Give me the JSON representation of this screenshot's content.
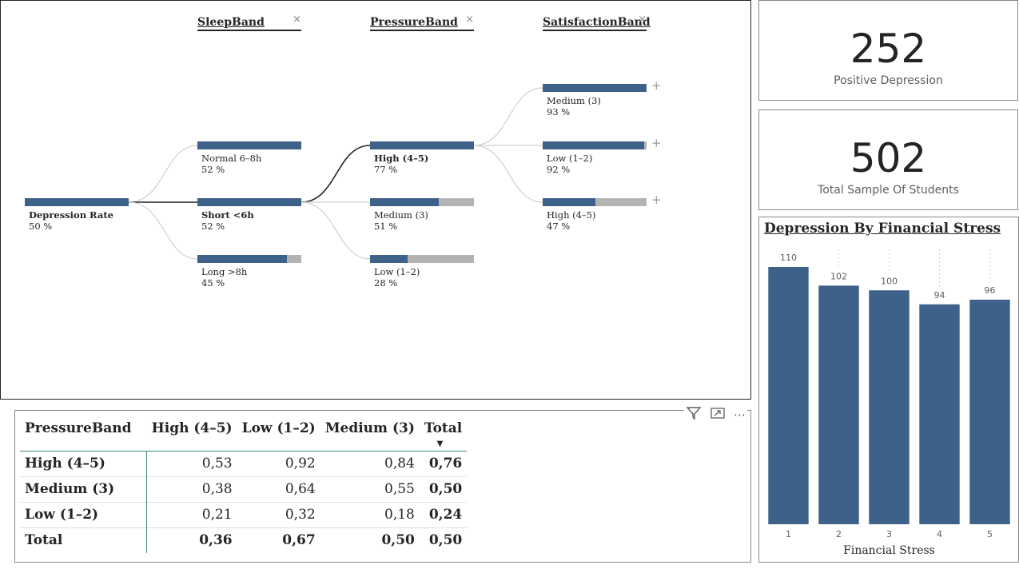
{
  "tree": {
    "levels": [
      {
        "title": "SleepBand",
        "close": "×"
      },
      {
        "title": "PressureBand",
        "close": "×"
      },
      {
        "title": "SatisfactionBand",
        "close": "×"
      }
    ],
    "root": {
      "label": "Depression Rate",
      "value": "50 %",
      "fraction": 1.0
    },
    "sleep": [
      {
        "label": "Normal 6–8h",
        "value": "52 %",
        "fraction": 1.0
      },
      {
        "label": "Short <6h",
        "value": "52 %",
        "fraction": 1.0
      },
      {
        "label": "Long >8h",
        "value": "45 %",
        "fraction": 0.86
      }
    ],
    "pressure": [
      {
        "label": "High (4–5)",
        "value": "77 %",
        "fraction": 1.0
      },
      {
        "label": "Medium (3)",
        "value": "51 %",
        "fraction": 0.66
      },
      {
        "label": "Low (1–2)",
        "value": "28 %",
        "fraction": 0.36
      }
    ],
    "satisfaction": [
      {
        "label": "Medium (3)",
        "value": "93 %",
        "fraction": 1.0,
        "plus": "+"
      },
      {
        "label": "Low (1–2)",
        "value": "92 %",
        "fraction": 0.98,
        "plus": "+"
      },
      {
        "label": "High (4–5)",
        "value": "47 %",
        "fraction": 0.51,
        "plus": "+"
      }
    ]
  },
  "cards": {
    "positive": {
      "value": "252",
      "label": "Positive Depression"
    },
    "total": {
      "value": "502",
      "label": "Total Sample Of Students"
    }
  },
  "chart": {
    "title": "Depression By Financial Stress"
  },
  "chart_data": {
    "type": "bar",
    "title": "Depression By Financial Stress",
    "xlabel": "Financial Stress",
    "ylabel": "",
    "categories": [
      "1",
      "2",
      "3",
      "4",
      "5"
    ],
    "values": [
      110,
      102,
      100,
      94,
      96
    ],
    "ylim": [
      0,
      110
    ],
    "color": "#3e6189",
    "grid": false,
    "data_labels": true
  },
  "matrix": {
    "toolbar": {
      "filter": "filter-icon",
      "focus": "focus-mode-icon",
      "more": "⋯"
    },
    "corner": "PressureBand",
    "columns": [
      "High (4–5)",
      "Low (1–2)",
      "Medium (3)",
      "Total"
    ],
    "sort_arrow": "▼",
    "rows": [
      {
        "label": "High (4–5)",
        "cells": [
          "0,53",
          "0,92",
          "0,84",
          "0,76"
        ]
      },
      {
        "label": "Medium (3)",
        "cells": [
          "0,38",
          "0,64",
          "0,55",
          "0,50"
        ]
      },
      {
        "label": "Low (1–2)",
        "cells": [
          "0,21",
          "0,32",
          "0,18",
          "0,24"
        ]
      },
      {
        "label": "Total",
        "cells": [
          "0,36",
          "0,67",
          "0,50",
          "0,50"
        ]
      }
    ]
  },
  "colors": {
    "bar": "#3e6189",
    "bar_bg": "#b3b3b3",
    "accent_line": "#3f8f6b"
  }
}
